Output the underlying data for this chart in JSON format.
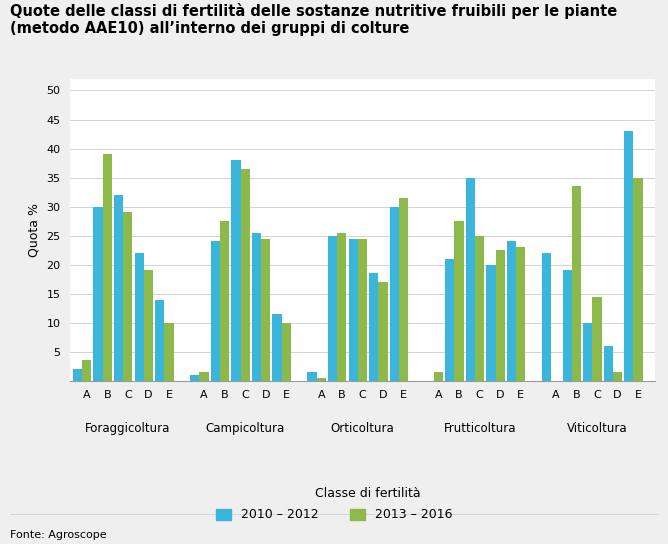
{
  "title": "Quote delle classi di fertilità delle sostanze nutritive fruibili per le piante\n(metodo AAE10) all’interno dei gruppi di colture",
  "ylabel": "Quota %",
  "xlabel": "Classe di fertilità",
  "source": "Fonte: Agroscope",
  "ylim": [
    0,
    52
  ],
  "yticks": [
    0,
    5,
    10,
    15,
    20,
    25,
    30,
    35,
    40,
    45,
    50
  ],
  "color_2010": "#3ab5dc",
  "color_2013": "#8db84a",
  "legend_labels": [
    "2010 – 2012",
    "2013 – 2016"
  ],
  "groups": [
    {
      "name": "Foraggicoltura",
      "classes": [
        "A",
        "B",
        "C",
        "D",
        "E"
      ],
      "values_2010": [
        2,
        30,
        32,
        22,
        14
      ],
      "values_2013": [
        3.5,
        39,
        29,
        19,
        10
      ]
    },
    {
      "name": "Campicoltura",
      "classes": [
        "A",
        "B",
        "C",
        "D",
        "E"
      ],
      "values_2010": [
        1,
        24,
        38,
        25.5,
        11.5
      ],
      "values_2013": [
        1.5,
        27.5,
        36.5,
        24.5,
        10
      ]
    },
    {
      "name": "Orticoltura",
      "classes": [
        "A",
        "B",
        "C",
        "D",
        "E"
      ],
      "values_2010": [
        1.5,
        25,
        24.5,
        18.5,
        30
      ],
      "values_2013": [
        0.5,
        25.5,
        24.5,
        17,
        31.5
      ]
    },
    {
      "name": "Frutticoltura",
      "classes": [
        "A",
        "B",
        "C",
        "D",
        "E"
      ],
      "values_2010": [
        0,
        21,
        35,
        20,
        24
      ],
      "values_2013": [
        1.5,
        27.5,
        25,
        22.5,
        23
      ]
    },
    {
      "name": "Viticoltura",
      "classes": [
        "A",
        "B",
        "C",
        "D",
        "E"
      ],
      "values_2010": [
        22,
        19,
        10,
        6,
        43
      ],
      "values_2013": [
        0,
        33.5,
        14.5,
        1.5,
        35
      ]
    }
  ],
  "background_color": "#efefef",
  "plot_bg_color": "#ffffff",
  "title_fontsize": 10.5,
  "label_fontsize": 9,
  "tick_fontsize": 8,
  "source_fontsize": 8,
  "group_label_fontsize": 8.5
}
